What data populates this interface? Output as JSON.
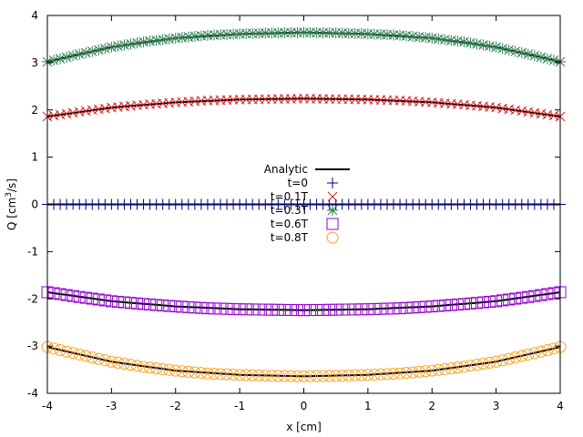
{
  "chart_data": {
    "type": "scatter",
    "title": "",
    "xlabel": "x [cm]",
    "ylabel_parts": [
      "Q [cm",
      "3",
      "/s]"
    ],
    "xlim": [
      -4,
      4
    ],
    "ylim": [
      -4,
      4
    ],
    "xticks": [
      -4,
      -3,
      -2,
      -1,
      0,
      1,
      2,
      3,
      4
    ],
    "yticks": [
      -4,
      -3,
      -2,
      -1,
      0,
      1,
      2,
      3,
      4
    ],
    "grid": false,
    "legend_placement": "center",
    "analytic": {
      "name": "Analytic",
      "color": "#000000",
      "curves": [
        {
          "x": [
            -4,
            -3,
            -2,
            -1,
            0,
            1,
            2,
            3,
            4
          ],
          "y": [
            3.02,
            3.33,
            3.52,
            3.61,
            3.64,
            3.61,
            3.52,
            3.33,
            3.02
          ]
        },
        {
          "x": [
            -4,
            -3,
            -2,
            -1,
            0,
            1,
            2,
            3,
            4
          ],
          "y": [
            1.86,
            2.05,
            2.16,
            2.22,
            2.24,
            2.22,
            2.16,
            2.05,
            1.86
          ]
        },
        {
          "x": [
            -4,
            -3,
            -2,
            -1,
            0,
            1,
            2,
            3,
            4
          ],
          "y": [
            0,
            0,
            0,
            0,
            0,
            0,
            0,
            0,
            0
          ]
        },
        {
          "x": [
            -4,
            -3,
            -2,
            -1,
            0,
            1,
            2,
            3,
            4
          ],
          "y": [
            -1.86,
            -2.05,
            -2.16,
            -2.22,
            -2.24,
            -2.22,
            -2.16,
            -2.05,
            -1.86
          ]
        },
        {
          "x": [
            -4,
            -3,
            -2,
            -1,
            0,
            1,
            2,
            3,
            4
          ],
          "y": [
            -3.02,
            -3.33,
            -3.52,
            -3.61,
            -3.64,
            -3.61,
            -3.52,
            -3.33,
            -3.02
          ]
        }
      ]
    },
    "series": [
      {
        "name": "t=0",
        "marker": "plus",
        "color": "#00007f",
        "x": [
          -4,
          -3.5,
          -3,
          -2.5,
          -2,
          -1.5,
          -1,
          -0.5,
          0,
          0.5,
          1,
          1.5,
          2,
          2.5,
          3,
          3.5,
          4
        ],
        "y": [
          0,
          0,
          0,
          0,
          0,
          0,
          0,
          0,
          0,
          0,
          0,
          0,
          0,
          0,
          0,
          0,
          0
        ]
      },
      {
        "name": "t=0.1T",
        "marker": "x",
        "color": "#e41a1c",
        "x": [
          -4,
          -3.5,
          -3,
          -2.5,
          -2,
          -1.5,
          -1,
          -0.5,
          0,
          0.5,
          1,
          1.5,
          2,
          2.5,
          3,
          3.5,
          4
        ],
        "y": [
          1.86,
          1.96,
          2.05,
          2.11,
          2.16,
          2.2,
          2.22,
          2.23,
          2.24,
          2.23,
          2.22,
          2.2,
          2.16,
          2.11,
          2.05,
          1.96,
          1.86
        ]
      },
      {
        "name": "t=0.3T",
        "marker": "star",
        "color": "#2e7d4f",
        "x": [
          -4,
          -3.5,
          -3,
          -2.5,
          -2,
          -1.5,
          -1,
          -0.5,
          0,
          0.5,
          1,
          1.5,
          2,
          2.5,
          3,
          3.5,
          4
        ],
        "y": [
          3.02,
          3.18,
          3.33,
          3.44,
          3.52,
          3.58,
          3.61,
          3.63,
          3.64,
          3.63,
          3.61,
          3.58,
          3.52,
          3.44,
          3.33,
          3.18,
          3.02
        ]
      },
      {
        "name": "t=0.6T",
        "marker": "square",
        "color": "#9400d3",
        "x": [
          -4,
          -3.5,
          -3,
          -2.5,
          -2,
          -1.5,
          -1,
          -0.5,
          0,
          0.5,
          1,
          1.5,
          2,
          2.5,
          3,
          3.5,
          4
        ],
        "y": [
          -1.86,
          -1.96,
          -2.05,
          -2.11,
          -2.16,
          -2.2,
          -2.22,
          -2.23,
          -2.24,
          -2.23,
          -2.22,
          -2.2,
          -2.16,
          -2.11,
          -2.05,
          -1.96,
          -1.86
        ]
      },
      {
        "name": "t=0.8T",
        "marker": "circle",
        "color": "#ff9f1c",
        "x": [
          -4,
          -3.5,
          -3,
          -2.5,
          -2,
          -1.5,
          -1,
          -0.5,
          0,
          0.5,
          1,
          1.5,
          2,
          2.5,
          3,
          3.5,
          4
        ],
        "y": [
          -3.02,
          -3.18,
          -3.33,
          -3.44,
          -3.52,
          -3.58,
          -3.61,
          -3.63,
          -3.64,
          -3.63,
          -3.61,
          -3.58,
          -3.52,
          -3.44,
          -3.33,
          -3.18,
          -3.02
        ]
      }
    ]
  }
}
